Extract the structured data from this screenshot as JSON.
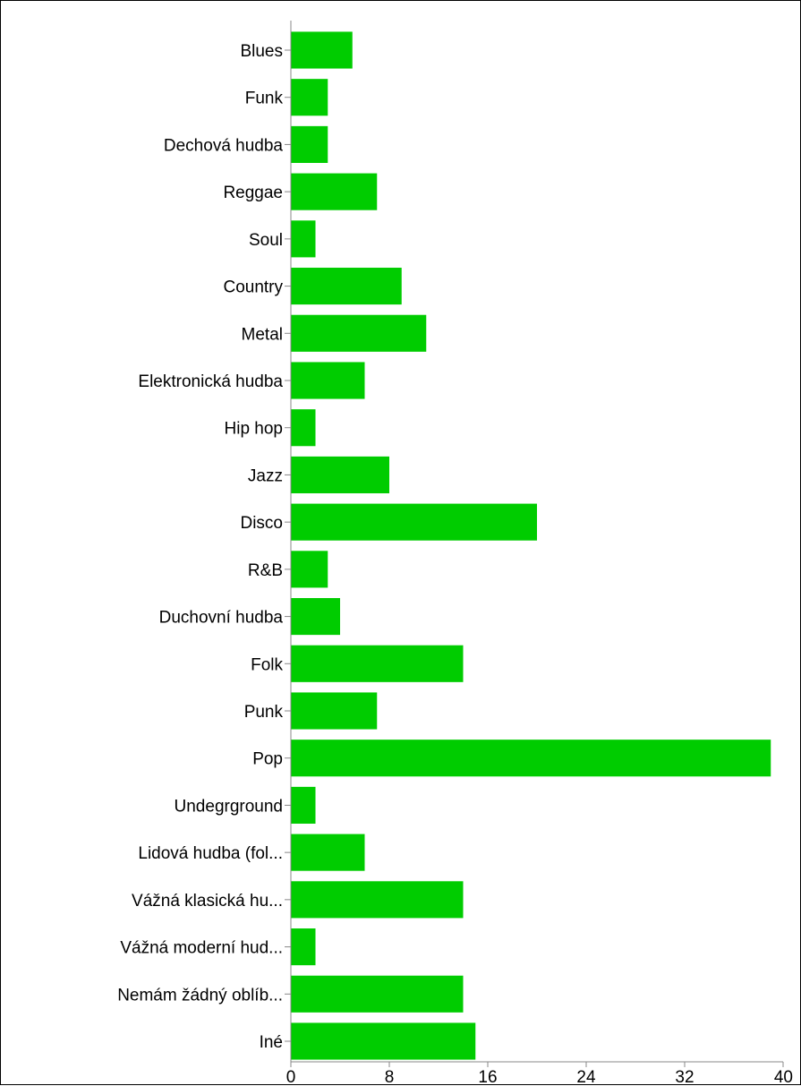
{
  "chart_data": {
    "type": "bar",
    "orientation": "horizontal",
    "categories": [
      "Blues",
      "Funk",
      "Dechová hudba",
      "Reggae",
      "Soul",
      "Country",
      "Metal",
      "Elektronická hudba",
      "Hip hop",
      "Jazz",
      "Disco",
      "R&B",
      "Duchovní hudba",
      "Folk",
      "Punk",
      "Pop",
      "Undegrground",
      "Lidová hudba (fol...",
      "Vážná klasická hu...",
      "Vážná moderní hud...",
      "Nemám žádný oblíb...",
      "Iné"
    ],
    "values": [
      5,
      3,
      3,
      7,
      2,
      9,
      11,
      6,
      2,
      8,
      20,
      3,
      4,
      14,
      7,
      39,
      2,
      6,
      14,
      2,
      14,
      15
    ],
    "xlim": [
      0,
      40
    ],
    "x_ticks": [
      "0",
      "8",
      "16",
      "24",
      "32",
      "40"
    ],
    "bar_color": "#00cc00",
    "title": "",
    "xlabel": "",
    "ylabel": "",
    "grid": false,
    "legend": "none"
  }
}
